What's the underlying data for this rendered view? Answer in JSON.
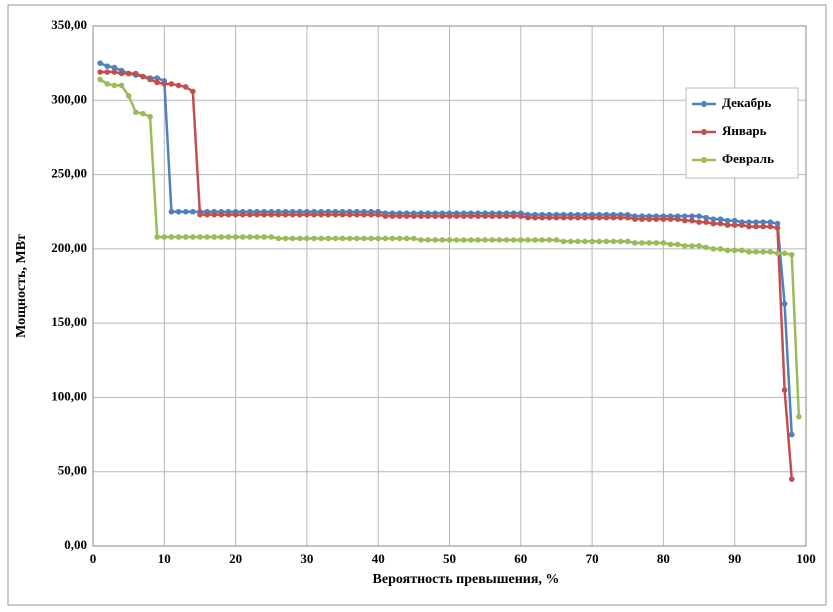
{
  "chart_data": {
    "type": "line",
    "x_label": "Вероятность превышения, %",
    "y_label": "Мощность, МВт",
    "xlim": [
      0,
      100
    ],
    "xticks": [
      0,
      10,
      20,
      30,
      40,
      50,
      60,
      70,
      80,
      90,
      100
    ],
    "ylim": [
      0,
      350
    ],
    "yticks": [
      {
        "value": 0,
        "label": "0,00"
      },
      {
        "value": 50,
        "label": "50,00"
      },
      {
        "value": 100,
        "label": "100,00"
      },
      {
        "value": 150,
        "label": "150,00"
      },
      {
        "value": 200,
        "label": "200,00"
      },
      {
        "value": 250,
        "label": "250,00"
      },
      {
        "value": 300,
        "label": "300,00"
      },
      {
        "value": 350,
        "label": "350,00"
      }
    ],
    "grid": true,
    "legend": "right",
    "x": [
      1,
      2,
      3,
      4,
      5,
      6,
      7,
      8,
      9,
      10,
      11,
      12,
      13,
      14,
      15,
      16,
      17,
      18,
      19,
      20,
      21,
      22,
      23,
      24,
      25,
      26,
      27,
      28,
      29,
      30,
      31,
      32,
      33,
      34,
      35,
      36,
      37,
      38,
      39,
      40,
      41,
      42,
      43,
      44,
      45,
      46,
      47,
      48,
      49,
      50,
      51,
      52,
      53,
      54,
      55,
      56,
      57,
      58,
      59,
      60,
      61,
      62,
      63,
      64,
      65,
      66,
      67,
      68,
      69,
      70,
      71,
      72,
      73,
      74,
      75,
      76,
      77,
      78,
      79,
      80,
      81,
      82,
      83,
      84,
      85,
      86,
      87,
      88,
      89,
      90,
      91,
      92,
      93,
      94,
      95,
      96,
      97,
      98,
      99
    ],
    "series": [
      {
        "name": "Декабрь",
        "color": "#4f81bd",
        "values": [
          325,
          323,
          322,
          320,
          318,
          317,
          316,
          315,
          315,
          313,
          225,
          225,
          225,
          225,
          225,
          225,
          225,
          225,
          225,
          225,
          225,
          225,
          225,
          225,
          225,
          225,
          225,
          225,
          225,
          225,
          225,
          225,
          225,
          225,
          225,
          225,
          225,
          225,
          225,
          225,
          224,
          224,
          224,
          224,
          224,
          224,
          224,
          224,
          224,
          224,
          224,
          224,
          224,
          224,
          224,
          224,
          224,
          224,
          224,
          224,
          223,
          223,
          223,
          223,
          223,
          223,
          223,
          223,
          223,
          223,
          223,
          223,
          223,
          223,
          223,
          222,
          222,
          222,
          222,
          222,
          222,
          222,
          222,
          222,
          222,
          221,
          220,
          220,
          219,
          219,
          218,
          218,
          218,
          218,
          218,
          217,
          163,
          75,
          null
        ]
      },
      {
        "name": "Январь",
        "color": "#c0504d",
        "values": [
          319,
          319,
          319,
          318,
          318,
          318,
          316,
          314,
          312,
          311,
          311,
          310,
          309,
          306,
          223,
          223,
          223,
          223,
          223,
          223,
          223,
          223,
          223,
          223,
          223,
          223,
          223,
          223,
          223,
          223,
          223,
          223,
          223,
          223,
          223,
          223,
          223,
          223,
          223,
          223,
          222,
          222,
          222,
          222,
          222,
          222,
          222,
          222,
          222,
          222,
          222,
          222,
          222,
          222,
          222,
          222,
          222,
          222,
          222,
          222,
          221,
          221,
          221,
          221,
          221,
          221,
          221,
          221,
          221,
          221,
          221,
          221,
          221,
          221,
          221,
          220,
          220,
          220,
          220,
          220,
          220,
          220,
          219,
          219,
          218,
          218,
          217,
          217,
          216,
          216,
          216,
          215,
          215,
          215,
          215,
          214,
          105,
          45,
          null
        ]
      },
      {
        "name": "Февраль",
        "color": "#9bbb59",
        "values": [
          314,
          311,
          310,
          310,
          303,
          292,
          291,
          289,
          208,
          208,
          208,
          208,
          208,
          208,
          208,
          208,
          208,
          208,
          208,
          208,
          208,
          208,
          208,
          208,
          208,
          207,
          207,
          207,
          207,
          207,
          207,
          207,
          207,
          207,
          207,
          207,
          207,
          207,
          207,
          207,
          207,
          207,
          207,
          207,
          207,
          206,
          206,
          206,
          206,
          206,
          206,
          206,
          206,
          206,
          206,
          206,
          206,
          206,
          206,
          206,
          206,
          206,
          206,
          206,
          206,
          205,
          205,
          205,
          205,
          205,
          205,
          205,
          205,
          205,
          205,
          204,
          204,
          204,
          204,
          204,
          203,
          203,
          202,
          202,
          202,
          201,
          200,
          200,
          199,
          199,
          199,
          198,
          198,
          198,
          198,
          197,
          197,
          196,
          87
        ]
      }
    ]
  }
}
